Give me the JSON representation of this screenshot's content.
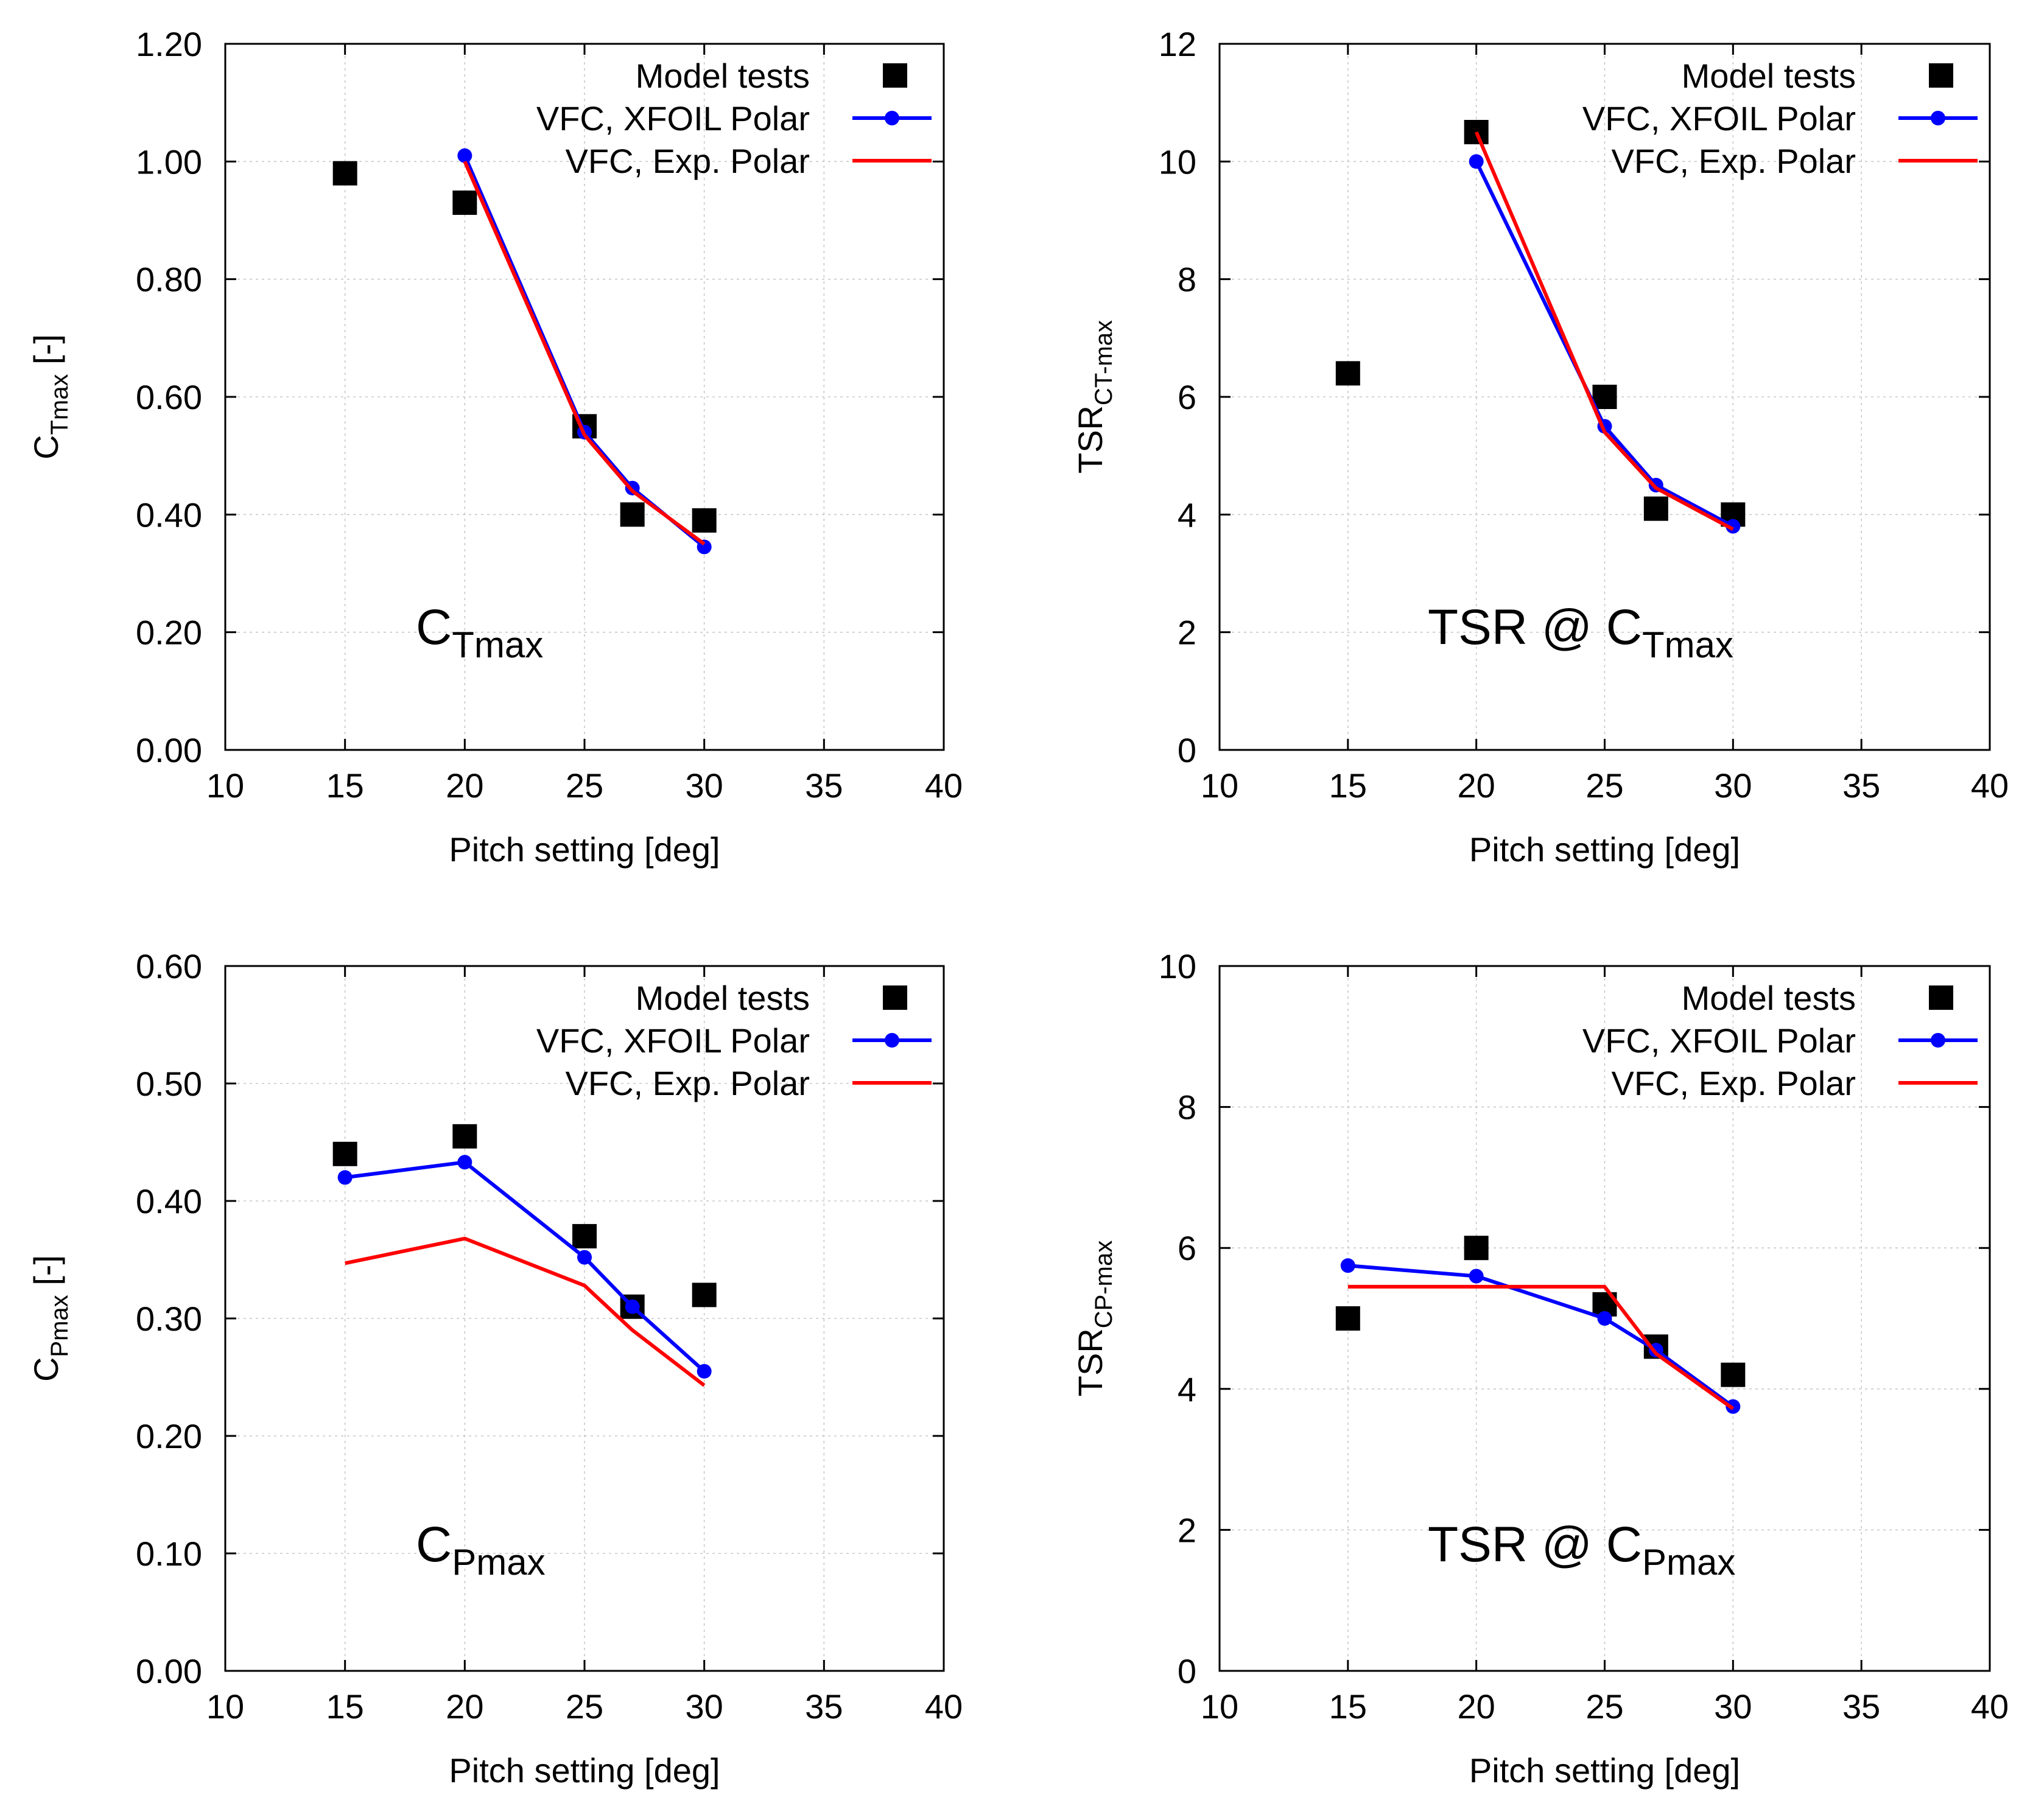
{
  "chart_data": [
    {
      "type": "line",
      "panel": "top-left",
      "annotation": {
        "main": "C",
        "sub": "Tmax"
      },
      "ylabel": {
        "main": "C",
        "sub": "Tmax",
        "suffix": " [-]"
      },
      "xlabel": "Pitch setting [deg]",
      "xlim": [
        10,
        40
      ],
      "ylim": [
        0,
        1.2
      ],
      "xticks": [
        "10",
        "15",
        "20",
        "25",
        "30",
        "35",
        "40"
      ],
      "yticks": [
        "0.00",
        "0.20",
        "0.40",
        "0.60",
        "0.80",
        "1.00",
        "1.20"
      ],
      "grid": true,
      "legend_position": "top-right",
      "legend": [
        "Model tests",
        "VFC, XFOIL Polar",
        "VFC,  Exp. Polar"
      ],
      "series": [
        {
          "name": "Model tests",
          "style": "square",
          "color": "#000000",
          "x": [
            15,
            20,
            25,
            27,
            30
          ],
          "y": [
            0.98,
            0.93,
            0.55,
            0.4,
            0.39
          ]
        },
        {
          "name": "VFC, XFOIL Polar",
          "style": "line-dot",
          "color": "#0000ff",
          "x": [
            20,
            25,
            27,
            30
          ],
          "y": [
            1.01,
            0.54,
            0.445,
            0.345
          ]
        },
        {
          "name": "VFC,  Exp. Polar",
          "style": "line",
          "color": "#ff0000",
          "x": [
            20,
            25,
            27,
            30
          ],
          "y": [
            1.0,
            0.535,
            0.44,
            0.35
          ]
        }
      ]
    },
    {
      "type": "line",
      "panel": "top-right",
      "annotation": {
        "main": "TSR @ C",
        "sub": "Tmax"
      },
      "ylabel": {
        "main": "TSR",
        "sub": "CT-max",
        "suffix": ""
      },
      "xlabel": "Pitch setting [deg]",
      "xlim": [
        10,
        40
      ],
      "ylim": [
        0,
        12
      ],
      "xticks": [
        "10",
        "15",
        "20",
        "25",
        "30",
        "35",
        "40"
      ],
      "yticks": [
        "0",
        "2",
        "4",
        "6",
        "8",
        "10",
        "12"
      ],
      "grid": true,
      "legend_position": "top-right",
      "legend": [
        "Model tests",
        "VFC, XFOIL Polar",
        "VFC,  Exp. Polar"
      ],
      "series": [
        {
          "name": "Model tests",
          "style": "square",
          "color": "#000000",
          "x": [
            15,
            20,
            25,
            27,
            30
          ],
          "y": [
            6.4,
            10.5,
            6.0,
            4.1,
            4.0
          ]
        },
        {
          "name": "VFC, XFOIL Polar",
          "style": "line-dot",
          "color": "#0000ff",
          "x": [
            20,
            25,
            27,
            30
          ],
          "y": [
            10.0,
            5.5,
            4.5,
            3.8
          ]
        },
        {
          "name": "VFC,  Exp. Polar",
          "style": "line",
          "color": "#ff0000",
          "x": [
            20,
            25,
            27,
            30
          ],
          "y": [
            10.5,
            5.4,
            4.45,
            3.75
          ]
        }
      ]
    },
    {
      "type": "line",
      "panel": "bottom-left",
      "annotation": {
        "main": "C",
        "sub": "Pmax"
      },
      "ylabel": {
        "main": "C",
        "sub": "Pmax",
        "suffix": " [-]"
      },
      "xlabel": "Pitch setting [deg]",
      "xlim": [
        10,
        40
      ],
      "ylim": [
        0,
        0.6
      ],
      "xticks": [
        "10",
        "15",
        "20",
        "25",
        "30",
        "35",
        "40"
      ],
      "yticks": [
        "0.00",
        "0.10",
        "0.20",
        "0.30",
        "0.40",
        "0.50",
        "0.60"
      ],
      "grid": true,
      "legend_position": "top-right",
      "legend": [
        "Model tests",
        "VFC, XFOIL Polar",
        "VFC,  Exp. Polar"
      ],
      "series": [
        {
          "name": "Model tests",
          "style": "square",
          "color": "#000000",
          "x": [
            15,
            20,
            25,
            27,
            30
          ],
          "y": [
            0.44,
            0.455,
            0.37,
            0.31,
            0.32
          ]
        },
        {
          "name": "VFC, XFOIL Polar",
          "style": "line-dot",
          "color": "#0000ff",
          "x": [
            15,
            20,
            25,
            27,
            30
          ],
          "y": [
            0.42,
            0.433,
            0.352,
            0.31,
            0.255
          ]
        },
        {
          "name": "VFC,  Exp. Polar",
          "style": "line",
          "color": "#ff0000",
          "x": [
            15,
            20,
            25,
            27,
            30
          ],
          "y": [
            0.347,
            0.368,
            0.328,
            0.29,
            0.243
          ]
        }
      ]
    },
    {
      "type": "line",
      "panel": "bottom-right",
      "annotation": {
        "main": "TSR @ C",
        "sub": "Pmax"
      },
      "ylabel": {
        "main": "TSR",
        "sub": "CP-max",
        "suffix": ""
      },
      "xlabel": "Pitch setting [deg]",
      "xlim": [
        10,
        40
      ],
      "ylim": [
        0,
        10
      ],
      "xticks": [
        "10",
        "15",
        "20",
        "25",
        "30",
        "35",
        "40"
      ],
      "yticks": [
        "0",
        "2",
        "4",
        "6",
        "8",
        "10"
      ],
      "grid": true,
      "legend_position": "top-right",
      "legend": [
        "Model tests",
        "VFC, XFOIL Polar",
        "VFC,  Exp. Polar"
      ],
      "series": [
        {
          "name": "Model tests",
          "style": "square",
          "color": "#000000",
          "x": [
            15,
            20,
            25,
            27,
            30
          ],
          "y": [
            5.0,
            6.0,
            5.2,
            4.6,
            4.2
          ]
        },
        {
          "name": "VFC, XFOIL Polar",
          "style": "line-dot",
          "color": "#0000ff",
          "x": [
            15,
            20,
            25,
            27,
            30
          ],
          "y": [
            5.75,
            5.6,
            5.0,
            4.55,
            3.75
          ]
        },
        {
          "name": "VFC,  Exp. Polar",
          "style": "line",
          "color": "#ff0000",
          "x": [
            15,
            20,
            25,
            27,
            30
          ],
          "y": [
            5.45,
            5.45,
            5.45,
            4.5,
            3.72
          ]
        }
      ]
    }
  ]
}
